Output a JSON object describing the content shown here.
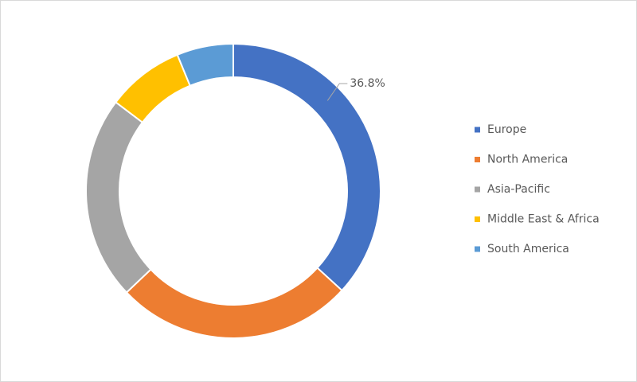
{
  "chart_data": {
    "type": "donut",
    "categories": [
      "Europe",
      "North America",
      "Asia-Pacific",
      "Middle East & Africa",
      "South America"
    ],
    "values": [
      36.8,
      26.1,
      22.4,
      8.5,
      6.2
    ],
    "value_labels": [
      "36.8%",
      null,
      null,
      null,
      null
    ],
    "colors": [
      "#4472c4",
      "#ed7d31",
      "#a5a5a5",
      "#ffc000",
      "#5b9bd5"
    ],
    "legend": "right"
  }
}
